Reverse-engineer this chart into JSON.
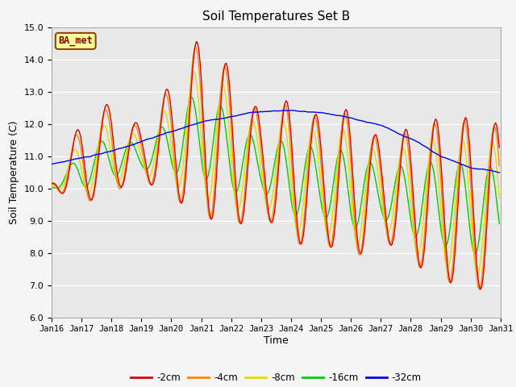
{
  "title": "Soil Temperatures Set B",
  "xlabel": "Time",
  "ylabel": "Soil Temperature (C)",
  "ylim": [
    6.0,
    15.0
  ],
  "yticks": [
    6.0,
    7.0,
    8.0,
    9.0,
    10.0,
    11.0,
    12.0,
    13.0,
    14.0,
    15.0
  ],
  "xtick_labels": [
    "Jan 16",
    "Jan 17",
    "Jan 18",
    "Jan 19",
    "Jan 20",
    "Jan 21",
    "Jan 22",
    "Jan 23",
    "Jan 24",
    "Jan 25",
    "Jan 26",
    "Jan 27",
    "Jan 28",
    "Jan 29",
    "Jan 30",
    "Jan 31"
  ],
  "legend_label": "BA_met",
  "series_labels": [
    "-2cm",
    "-4cm",
    "-8cm",
    "-16cm",
    "-32cm"
  ],
  "series_colors": [
    "#dd0000",
    "#ff8800",
    "#dddd00",
    "#00cc00",
    "#0000ee"
  ],
  "bg_color": "#e8e8e8",
  "grid_color": "#ffffff",
  "n_days": 15,
  "hrs_per_day": 24,
  "base_32cm": [
    10.75,
    10.95,
    11.15,
    11.45,
    11.75,
    12.05,
    12.25,
    12.38,
    12.42,
    12.35,
    12.18,
    11.95,
    11.55,
    11.0,
    10.65,
    10.5
  ],
  "base_2cm": [
    10.1,
    10.8,
    11.3,
    11.1,
    11.5,
    12.0,
    11.2,
    10.8,
    10.5,
    10.3,
    10.1,
    10.0,
    9.8,
    9.7,
    9.5,
    9.5
  ],
  "base_4cm": [
    10.1,
    10.75,
    11.2,
    11.05,
    11.45,
    11.95,
    11.15,
    10.75,
    10.45,
    10.25,
    10.05,
    9.95,
    9.75,
    9.65,
    9.45,
    9.45
  ],
  "base_8cm": [
    10.1,
    10.65,
    11.1,
    11.0,
    11.4,
    11.85,
    11.1,
    10.7,
    10.4,
    10.2,
    10.0,
    9.9,
    9.7,
    9.6,
    9.4,
    9.4
  ],
  "base_16cm": [
    10.05,
    10.55,
    11.0,
    10.95,
    11.35,
    11.75,
    11.05,
    10.65,
    10.35,
    10.15,
    9.95,
    9.85,
    9.65,
    9.55,
    9.35,
    9.35
  ],
  "amp_2cm": [
    0.08,
    1.3,
    1.4,
    0.8,
    1.8,
    2.8,
    2.5,
    1.5,
    2.3,
    1.9,
    2.4,
    1.5,
    2.1,
    2.5,
    2.7,
    2.5
  ],
  "amp_4cm": [
    0.07,
    1.25,
    1.35,
    0.75,
    1.75,
    2.75,
    2.4,
    1.45,
    2.25,
    1.85,
    2.35,
    1.45,
    2.05,
    2.45,
    2.65,
    2.45
  ],
  "amp_8cm": [
    0.06,
    0.9,
    1.0,
    0.55,
    1.3,
    2.1,
    1.85,
    1.1,
    1.8,
    1.5,
    1.9,
    1.1,
    1.65,
    2.0,
    2.1,
    1.95
  ],
  "amp_16cm": [
    0.04,
    0.55,
    0.65,
    0.35,
    0.85,
    1.4,
    1.2,
    0.7,
    1.2,
    1.0,
    1.25,
    0.75,
    1.1,
    1.3,
    1.4,
    1.3
  ],
  "phase_lag_2cm": 0.0,
  "phase_lag_4cm": 0.04,
  "phase_lag_8cm": 0.1,
  "phase_lag_16cm": 0.18
}
